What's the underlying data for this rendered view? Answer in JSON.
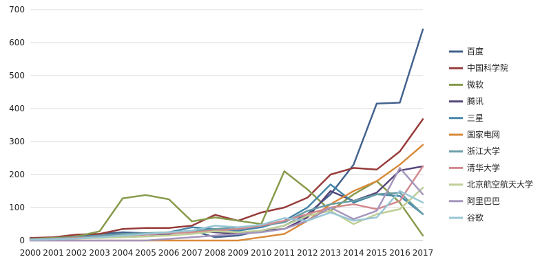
{
  "chart_data": {
    "type": "line",
    "title": "",
    "xlabel": "",
    "ylabel": "",
    "x": [
      "2000",
      "2001",
      "2002",
      "2003",
      "2004",
      "2005",
      "2006",
      "2007",
      "2008",
      "2009",
      "2010",
      "2011",
      "2012",
      "2013",
      "2014",
      "2015",
      "2016",
      "2017"
    ],
    "ylim": [
      0,
      700
    ],
    "yticks": [
      0,
      100,
      200,
      300,
      400,
      500,
      600,
      700
    ],
    "grid": true,
    "legend_position": "right",
    "series": [
      {
        "name": "百度",
        "color": "#44628e",
        "values": [
          5,
          8,
          10,
          20,
          25,
          22,
          22,
          30,
          10,
          15,
          30,
          45,
          80,
          140,
          230,
          415,
          418,
          640
        ]
      },
      {
        "name": "中国科学院",
        "color": "#973c3a",
        "values": [
          8,
          10,
          18,
          20,
          35,
          38,
          38,
          45,
          78,
          60,
          85,
          100,
          130,
          200,
          220,
          215,
          270,
          368
        ]
      },
      {
        "name": "微软",
        "color": "#879a4c",
        "values": [
          5,
          8,
          12,
          28,
          128,
          138,
          125,
          58,
          70,
          60,
          50,
          210,
          155,
          90,
          140,
          180,
          115,
          15
        ]
      },
      {
        "name": "腾讯",
        "color": "#554679",
        "values": [
          2,
          4,
          8,
          12,
          15,
          18,
          20,
          30,
          25,
          20,
          30,
          35,
          70,
          150,
          120,
          145,
          212,
          225
        ]
      },
      {
        "name": "三星",
        "color": "#4586aa",
        "values": [
          3,
          5,
          8,
          12,
          18,
          22,
          25,
          40,
          35,
          30,
          40,
          60,
          100,
          170,
          115,
          140,
          135,
          80
        ]
      },
      {
        "name": "国家电网",
        "color": "#d98a3a",
        "values": [
          0,
          0,
          0,
          0,
          0,
          0,
          0,
          0,
          0,
          0,
          10,
          20,
          60,
          110,
          150,
          180,
          230,
          290
        ]
      },
      {
        "name": "浙江大学",
        "color": "#6a9da6",
        "values": [
          5,
          6,
          10,
          15,
          20,
          22,
          25,
          28,
          35,
          40,
          45,
          55,
          90,
          110,
          120,
          140,
          145,
          80
        ]
      },
      {
        "name": "清华大学",
        "color": "#d2898e",
        "values": [
          3,
          5,
          8,
          10,
          15,
          18,
          22,
          25,
          30,
          35,
          45,
          60,
          80,
          100,
          110,
          95,
          120,
          225
        ]
      },
      {
        "name": "北京航空航天大学",
        "color": "#bfce96",
        "values": [
          2,
          4,
          6,
          8,
          10,
          12,
          15,
          20,
          28,
          25,
          30,
          45,
          75,
          90,
          50,
          80,
          95,
          160
        ]
      },
      {
        "name": "阿里巴巴",
        "color": "#a596bc",
        "values": [
          0,
          0,
          0,
          0,
          0,
          0,
          5,
          10,
          15,
          20,
          25,
          35,
          60,
          100,
          65,
          90,
          220,
          140
        ]
      },
      {
        "name": "谷歌",
        "color": "#98c6d4",
        "values": [
          2,
          4,
          6,
          10,
          15,
          20,
          25,
          30,
          45,
          40,
          48,
          68,
          60,
          85,
          60,
          70,
          150,
          115
        ]
      }
    ]
  }
}
